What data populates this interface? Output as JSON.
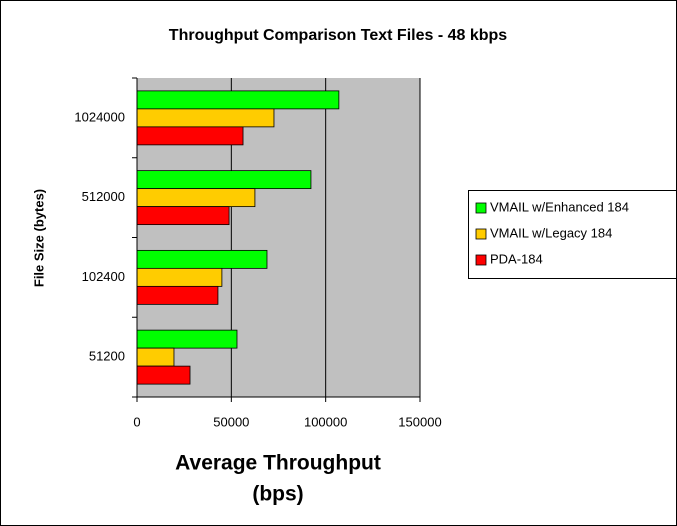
{
  "chart_data": {
    "type": "hbar",
    "title": "Throughput Comparison Text Files - 48 kbps",
    "x_label": [
      "Average Throughput",
      "(bps)"
    ],
    "y_label": "File Size (bytes)",
    "categories": [
      "1024000",
      "512000",
      "102400",
      "51200"
    ],
    "series": [
      {
        "name": "VMAIL w/Enhanced 184",
        "color": "#00ff00",
        "values": [
          107000,
          92200,
          68900,
          53000
        ]
      },
      {
        "name": "VMAIL w/Legacy 184",
        "color": "#ffcc00",
        "values": [
          72600,
          62500,
          45000,
          19600
        ]
      },
      {
        "name": "PDA-184",
        "color": "#ff0000",
        "values": [
          56200,
          48800,
          42900,
          28100
        ]
      }
    ],
    "xlim": [
      0,
      150000
    ],
    "xticks": [
      0,
      50000,
      100000,
      150000
    ],
    "grid": true,
    "legend": "right",
    "plot_background": "#c0c0c0"
  }
}
